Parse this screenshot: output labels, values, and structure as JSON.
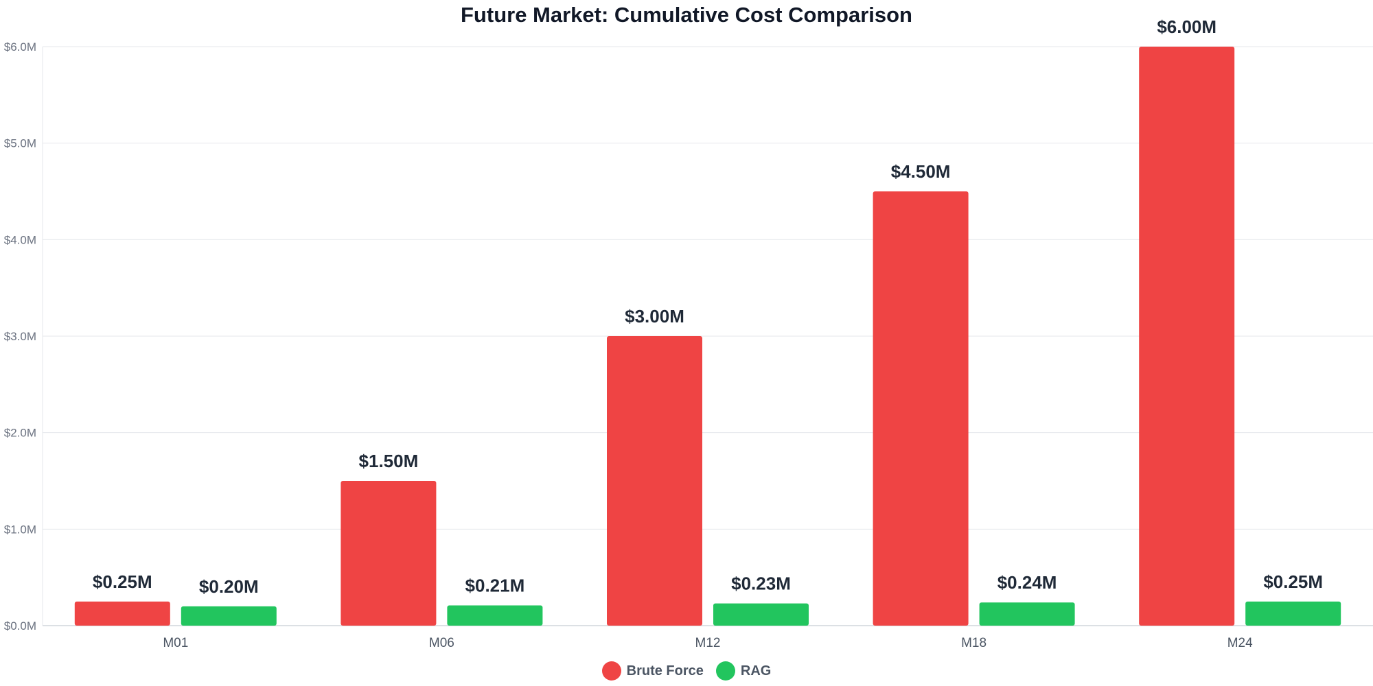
{
  "chart_data": {
    "type": "bar",
    "title": "Future Market: Cumulative Cost Comparison",
    "xlabel": "",
    "ylabel": "",
    "categories": [
      "M01",
      "M06",
      "M12",
      "M18",
      "M24"
    ],
    "series": [
      {
        "name": "Brute Force",
        "color": "#ef4444",
        "values": [
          0.25,
          1.5,
          3.0,
          4.5,
          6.0
        ],
        "labels": [
          "$0.25M",
          "$1.50M",
          "$3.00M",
          "$4.50M",
          "$6.00M"
        ]
      },
      {
        "name": "RAG",
        "color": "#22c55e",
        "values": [
          0.2,
          0.21,
          0.23,
          0.24,
          0.25
        ],
        "labels": [
          "$0.20M",
          "$0.21M",
          "$0.23M",
          "$0.24M",
          "$0.25M"
        ]
      }
    ],
    "ylim": [
      0,
      6
    ],
    "y_ticks": [
      {
        "value": 0,
        "label": "$0.0M"
      },
      {
        "value": 1,
        "label": "$1.0M"
      },
      {
        "value": 2,
        "label": "$2.0M"
      },
      {
        "value": 3,
        "label": "$3.0M"
      },
      {
        "value": 4,
        "label": "$4.0M"
      },
      {
        "value": 5,
        "label": "$5.0M"
      },
      {
        "value": 6,
        "label": "$6.0M"
      }
    ],
    "grid": true,
    "legend_position": "bottom"
  }
}
